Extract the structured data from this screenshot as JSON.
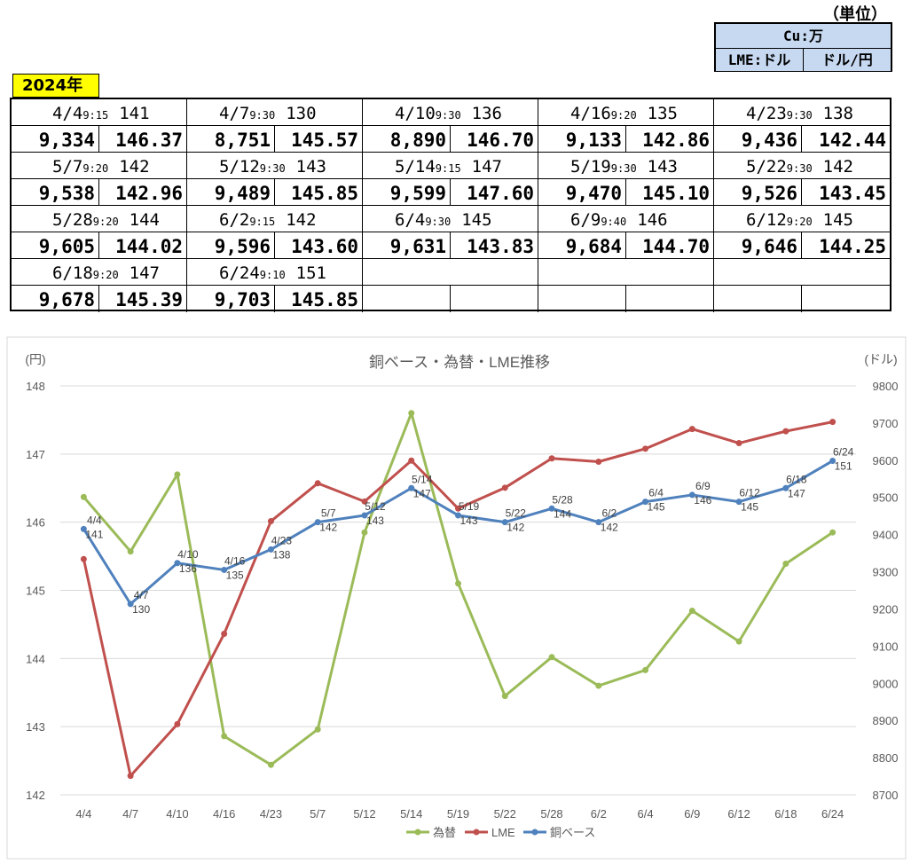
{
  "unit": {
    "heading": "（単位）",
    "commodity": "Cu:万",
    "lme_unit": "LME:ドル",
    "fx_unit": "ドル/円"
  },
  "year_label": "2024年",
  "table": [
    {
      "date": "4/4",
      "time": "9:15",
      "copper": "141",
      "lme": "9,334",
      "fx": "146.37"
    },
    {
      "date": "4/7",
      "time": "9:30",
      "copper": "130",
      "lme": "8,751",
      "fx": "145.57"
    },
    {
      "date": "4/10",
      "time": "9:30",
      "copper": "136",
      "lme": "8,890",
      "fx": "146.70"
    },
    {
      "date": "4/16",
      "time": "9:20",
      "copper": "135",
      "lme": "9,133",
      "fx": "142.86"
    },
    {
      "date": "4/23",
      "time": "9:30",
      "copper": "138",
      "lme": "9,436",
      "fx": "142.44"
    },
    {
      "date": "5/7",
      "time": "9:20",
      "copper": "142",
      "lme": "9,538",
      "fx": "142.96"
    },
    {
      "date": "5/12",
      "time": "9:30",
      "copper": "143",
      "lme": "9,489",
      "fx": "145.85"
    },
    {
      "date": "5/14",
      "time": "9:15",
      "copper": "147",
      "lme": "9,599",
      "fx": "147.60"
    },
    {
      "date": "5/19",
      "time": "9:30",
      "copper": "143",
      "lme": "9,470",
      "fx": "145.10"
    },
    {
      "date": "5/22",
      "time": "9:30",
      "copper": "142",
      "lme": "9,526",
      "fx": "143.45"
    },
    {
      "date": "5/28",
      "time": "9:20",
      "copper": "144",
      "lme": "9,605",
      "fx": "144.02"
    },
    {
      "date": "6/2",
      "time": "9:15",
      "copper": "142",
      "lme": "9,596",
      "fx": "143.60"
    },
    {
      "date": "6/4",
      "time": "9:30",
      "copper": "145",
      "lme": "9,631",
      "fx": "143.83"
    },
    {
      "date": "6/9",
      "time": "9:40",
      "copper": "146",
      "lme": "9,684",
      "fx": "144.70"
    },
    {
      "date": "6/12",
      "time": "9:20",
      "copper": "145",
      "lme": "9,646",
      "fx": "144.25"
    },
    {
      "date": "6/18",
      "time": "9:20",
      "copper": "147",
      "lme": "9,678",
      "fx": "145.39"
    },
    {
      "date": "6/24",
      "time": "9:10",
      "copper": "151",
      "lme": "9,703",
      "fx": "145.85"
    }
  ],
  "chart_data": {
    "type": "line",
    "title": "銅ベース・為替・LME推移",
    "y_left_label": "(円)",
    "y_right_label": "(ドル)",
    "y_left_lim": [
      142,
      148
    ],
    "y_left_ticks": [
      "142",
      "143",
      "144",
      "145",
      "146",
      "147",
      "148"
    ],
    "y_right_lim": [
      8700,
      9800
    ],
    "y_right_ticks": [
      "8700",
      "8800",
      "8900",
      "9000",
      "9100",
      "9200",
      "9300",
      "9400",
      "9500",
      "9600",
      "9700",
      "9800"
    ],
    "categories": [
      "4/4",
      "4/7",
      "4/10",
      "4/16",
      "4/23",
      "5/7",
      "5/12",
      "5/14",
      "5/19",
      "5/22",
      "5/28",
      "6/2",
      "6/4",
      "6/9",
      "6/12",
      "6/18",
      "6/24"
    ],
    "legend_position": "bottom",
    "colors": {
      "fx": "#9bbb59",
      "lme": "#c0504d",
      "copper": "#4f81bd",
      "grid": "#d9d9d9"
    },
    "series": [
      {
        "name": "為替",
        "axis": "left",
        "values": [
          146.37,
          145.57,
          146.7,
          142.86,
          142.44,
          142.96,
          145.85,
          147.6,
          145.1,
          143.45,
          144.02,
          143.6,
          143.83,
          144.7,
          144.25,
          145.39,
          145.85
        ]
      },
      {
        "name": "LME",
        "axis": "right",
        "values": [
          9334,
          8751,
          8890,
          9133,
          9436,
          9538,
          9489,
          9599,
          9470,
          9526,
          9605,
          9596,
          9631,
          9684,
          9646,
          9678,
          9703
        ]
      },
      {
        "name": "銅ベース",
        "axis": "left",
        "values": [
          145.9,
          144.8,
          145.4,
          145.3,
          145.6,
          146.0,
          146.1,
          146.5,
          146.1,
          146.0,
          146.2,
          146.0,
          146.3,
          146.4,
          146.3,
          146.5,
          146.9
        ],
        "labels_date": [
          "4/4",
          "4/7",
          "4/10",
          "4/16",
          "4/23",
          "5/7",
          "5/12",
          "5/14",
          "5/19",
          "5/22",
          "5/28",
          "6/2",
          "6/4",
          "6/9",
          "6/12",
          "6/18",
          "6/24"
        ],
        "labels_value": [
          "141",
          "130",
          "136",
          "135",
          "138",
          "142",
          "143",
          "147",
          "143",
          "142",
          "144",
          "142",
          "145",
          "146",
          "145",
          "147",
          "151"
        ]
      }
    ]
  }
}
